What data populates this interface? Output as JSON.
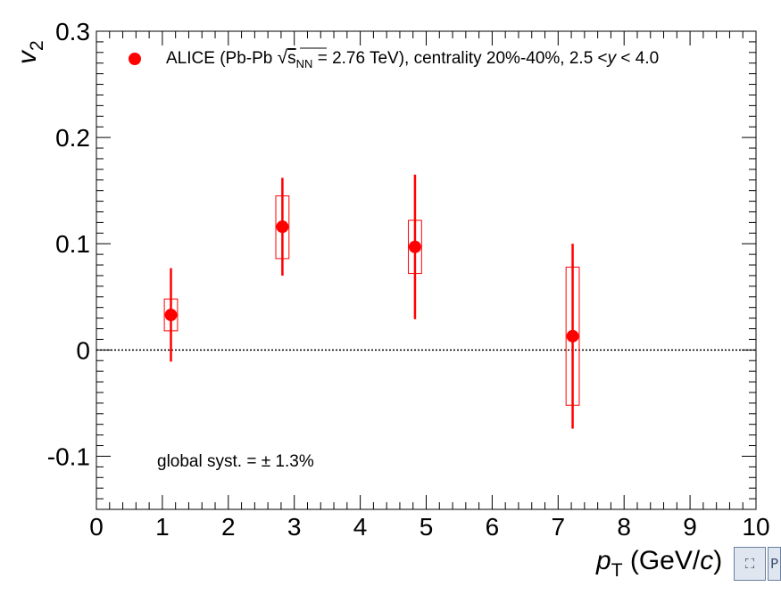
{
  "chart_data": {
    "type": "scatter",
    "xlabel": "p",
    "xlabel_sub": "T",
    "xlabel_units_prefix": " (GeV/",
    "xlabel_units_italic": "c",
    "xlabel_units_suffix": ")",
    "ylabel": "v",
    "ylabel_sub": "2",
    "xlim": [
      0,
      10
    ],
    "ylim": [
      -0.15,
      0.3
    ],
    "xticks": [
      0,
      1,
      2,
      3,
      4,
      5,
      6,
      7,
      8,
      9,
      10
    ],
    "xtick_labels": [
      "0",
      "1",
      "2",
      "3",
      "4",
      "5",
      "6",
      "7",
      "8",
      "9",
      "10"
    ],
    "yticks": [
      -0.1,
      0,
      0.1,
      0.2,
      0.3
    ],
    "ytick_labels": [
      "-0.1",
      "0",
      "0.1",
      "0.2",
      "0.3"
    ],
    "grid": false,
    "reference_line": {
      "y": 0,
      "style": "dotted"
    },
    "legend_position": "top",
    "series": [
      {
        "name": "ALICE (Pb-Pb √s_NN = 2.76 TeV), centrality 20%-40%, 2.5 < y < 4.0",
        "color": "#ff0000",
        "x": [
          1.13,
          2.82,
          4.83,
          7.22
        ],
        "y": [
          0.033,
          0.116,
          0.097,
          0.013
        ],
        "stat_err": [
          0.044,
          0.046,
          0.068,
          0.087
        ],
        "syst_low": [
          0.018,
          0.086,
          0.072,
          -0.052
        ],
        "syst_high": [
          0.048,
          0.145,
          0.122,
          0.078
        ],
        "syst_halfwidth_x": 0.1
      }
    ],
    "legend": {
      "part1": "ALICE (Pb-Pb ",
      "sqrt_symbol": "√",
      "s": "s",
      "s_sub": "NN",
      "part2": " = 2.76 TeV), centrality 20%-40%, 2.5 <",
      "y": "y",
      "part3": " < 4.0"
    },
    "annotation": "global syst. = ± 1.3%"
  },
  "corner_buttons": [
    {
      "icon": "fit-view-icon",
      "glyph": "⛶"
    },
    {
      "icon": "panel-icon",
      "glyph": "P"
    }
  ]
}
